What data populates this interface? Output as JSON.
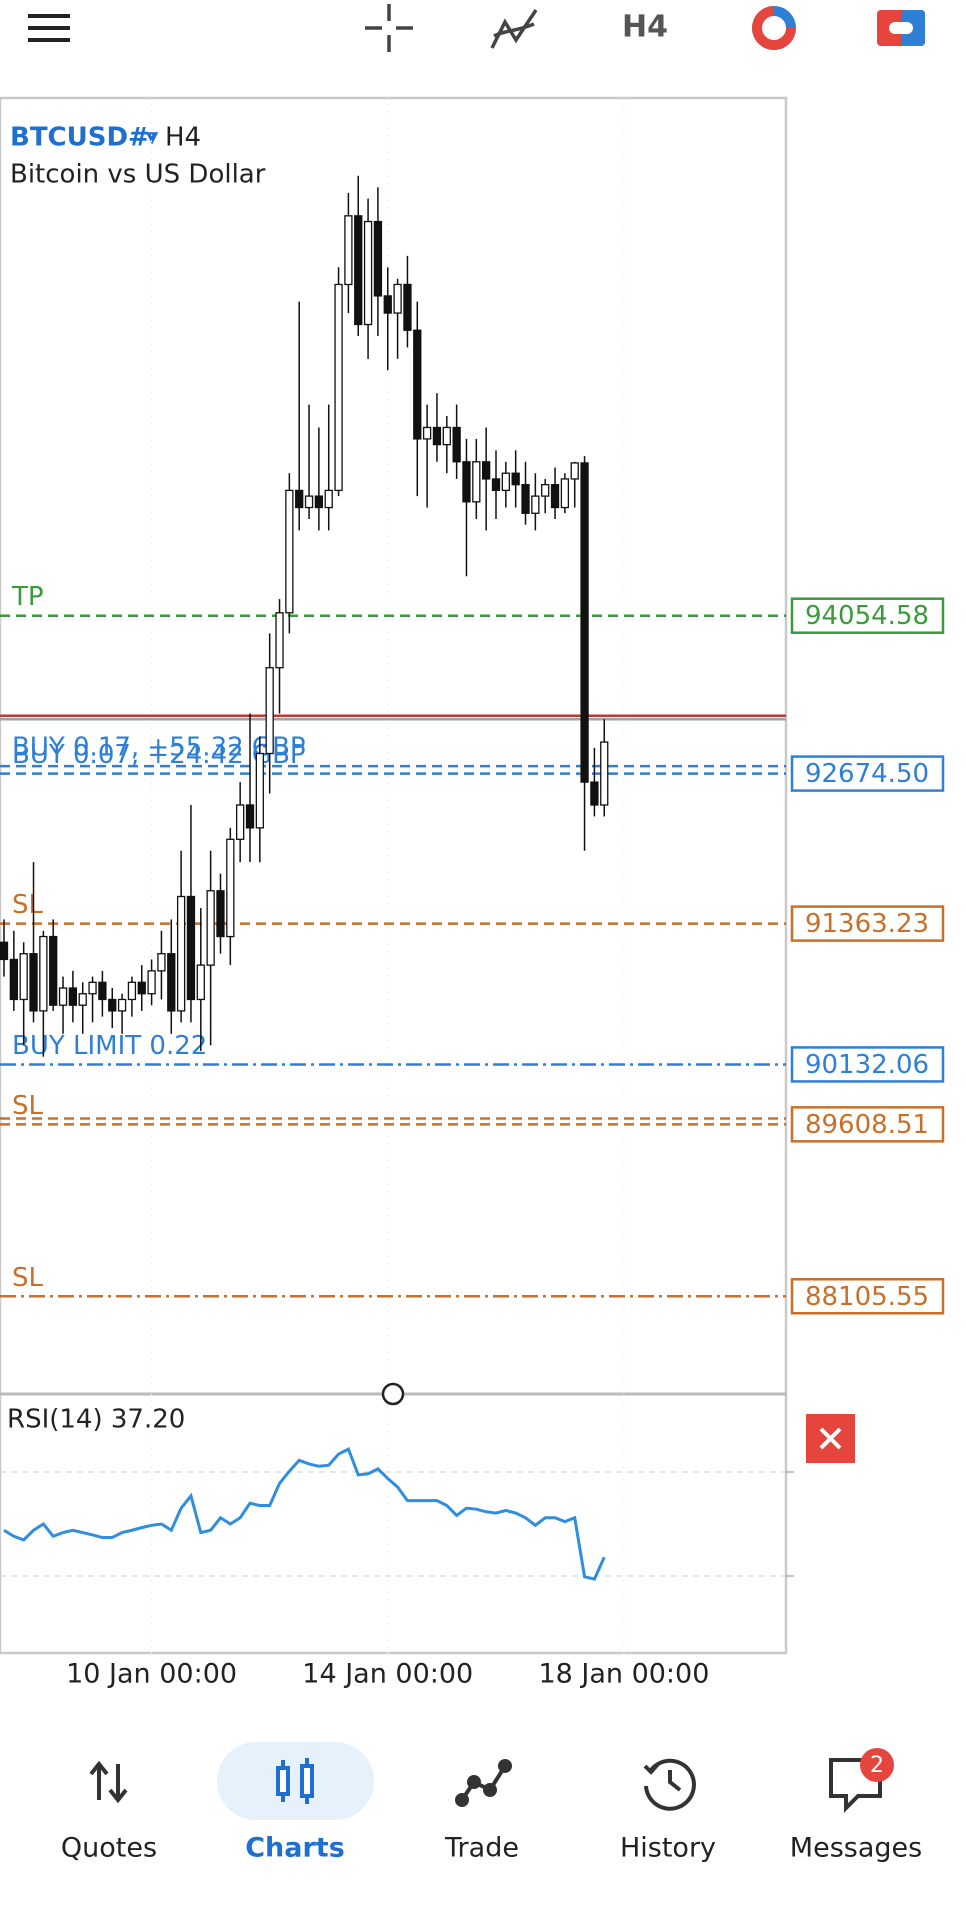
{
  "top_bar": {
    "timeframe": "H4"
  },
  "chart": {
    "symbol": "BTCUSD#",
    "timeframe": "H4",
    "description": "Bitcoin vs US Dollar",
    "ylim": [
      87260,
      98580
    ],
    "candles": [
      [
        91200,
        91400,
        90900,
        91050
      ],
      [
        91050,
        91300,
        90600,
        90700
      ],
      [
        90700,
        91200,
        90300,
        91100
      ],
      [
        91100,
        91900,
        90500,
        90600
      ],
      [
        90600,
        91300,
        90200,
        91250
      ],
      [
        91250,
        91400,
        90600,
        90650
      ],
      [
        90650,
        90900,
        90400,
        90800
      ],
      [
        90800,
        90950,
        90500,
        90650
      ],
      [
        90650,
        90850,
        90400,
        90750
      ],
      [
        90750,
        90900,
        90500,
        90850
      ],
      [
        90850,
        90950,
        90550,
        90700
      ],
      [
        90700,
        90800,
        90450,
        90600
      ],
      [
        90600,
        90750,
        90400,
        90700
      ],
      [
        90700,
        90900,
        90550,
        90850
      ],
      [
        90850,
        91000,
        90600,
        90750
      ],
      [
        90750,
        91050,
        90650,
        90950
      ],
      [
        90950,
        91300,
        90700,
        91100
      ],
      [
        91100,
        91400,
        90400,
        90600
      ],
      [
        90600,
        92000,
        90500,
        91600
      ],
      [
        91600,
        92400,
        90500,
        90700
      ],
      [
        90700,
        91500,
        90250,
        91000
      ],
      [
        91000,
        92000,
        90300,
        91650
      ],
      [
        91650,
        91800,
        91100,
        91250
      ],
      [
        91250,
        92200,
        91000,
        92100
      ],
      [
        92100,
        92600,
        91900,
        92400
      ],
      [
        92400,
        93200,
        91900,
        92200
      ],
      [
        92200,
        93000,
        91900,
        92850
      ],
      [
        92850,
        93900,
        92500,
        93600
      ],
      [
        93600,
        94200,
        93200,
        94080
      ],
      [
        94080,
        95300,
        93900,
        95150
      ],
      [
        95150,
        96800,
        94800,
        95000
      ],
      [
        95000,
        95900,
        94900,
        95100
      ],
      [
        95100,
        95700,
        94800,
        95000
      ],
      [
        95000,
        95900,
        94800,
        95150
      ],
      [
        95150,
        97100,
        95100,
        96950
      ],
      [
        96950,
        97750,
        96700,
        97550
      ],
      [
        97550,
        97900,
        96500,
        96600
      ],
      [
        96600,
        97700,
        96300,
        97500
      ],
      [
        97500,
        97800,
        96500,
        96850
      ],
      [
        96850,
        97100,
        96200,
        96700
      ],
      [
        96700,
        97000,
        96300,
        96950
      ],
      [
        96950,
        97200,
        96400,
        96550
      ],
      [
        96550,
        96800,
        95100,
        95600
      ],
      [
        95600,
        95900,
        95000,
        95700
      ],
      [
        95700,
        96000,
        95400,
        95550
      ],
      [
        95550,
        95800,
        95300,
        95700
      ],
      [
        95700,
        95900,
        95250,
        95400
      ],
      [
        95400,
        95600,
        94400,
        95050
      ],
      [
        95050,
        95600,
        94900,
        95400
      ],
      [
        95400,
        95700,
        94800,
        95250
      ],
      [
        95250,
        95500,
        94900,
        95150
      ],
      [
        95150,
        95400,
        95000,
        95300
      ],
      [
        95300,
        95500,
        95000,
        95200
      ],
      [
        95200,
        95400,
        94850,
        94950
      ],
      [
        94950,
        95300,
        94800,
        95100
      ],
      [
        95100,
        95250,
        94950,
        95200
      ],
      [
        95200,
        95350,
        94900,
        95000
      ],
      [
        95000,
        95300,
        94950,
        95250
      ],
      [
        95250,
        95400,
        95000,
        95390
      ],
      [
        95390,
        95450,
        92000,
        92600
      ],
      [
        92600,
        92900,
        92300,
        92400
      ],
      [
        92400,
        93150,
        92300,
        92950
      ]
    ],
    "x_labels": [
      {
        "index": 15,
        "label": "10 Jan 00:00"
      },
      {
        "index": 39,
        "label": "14 Jan 00:00"
      },
      {
        "index": 63,
        "label": "18 Jan 00:00"
      }
    ],
    "price_lines": [
      {
        "label": "TP",
        "price": 94054.58,
        "price_label": "94054.58",
        "color": "#3a9b3a",
        "style": "dashed"
      },
      {
        "price": 93180,
        "color": "#c0392b",
        "style": "solid"
      },
      {
        "price": 93150,
        "color": "#9aa4ae",
        "style": "solid"
      },
      {
        "label": "BUY 0.17, +55.32 GBP",
        "price": 92740,
        "color": "#2f7fd6",
        "style": "dashed"
      },
      {
        "label": "BUY 0.07, +24.42 GBP",
        "price": 92674.5,
        "price_label": "92674.50",
        "color": "#2f7fd6",
        "style": "dashed"
      },
      {
        "label": "SL",
        "price": 91363.23,
        "price_label": "91363.23",
        "color": "#c8702a",
        "style": "dashed"
      },
      {
        "label": "BUY LIMIT 0.22",
        "price": 90132.06,
        "price_label": "90132.06",
        "color": "#2f7fd6",
        "style": "dashdot"
      },
      {
        "price": 89660,
        "color": "#c8702a",
        "style": "dashed"
      },
      {
        "label": "SL",
        "price": 89608.51,
        "price_label": "89608.51",
        "color": "#c8702a",
        "style": "dashed"
      },
      {
        "label": "SL",
        "price": 88105.55,
        "price_label": "88105.55",
        "color": "#c8702a",
        "style": "dashdot"
      }
    ]
  },
  "rsi": {
    "label": "RSI(14) 37.20",
    "ylim": [
      0,
      100
    ],
    "levels": [
      30,
      70
    ],
    "values": [
      47.6,
      45.3,
      43.9,
      47.6,
      50.0,
      45.3,
      46.7,
      47.6,
      46.7,
      45.8,
      44.8,
      44.8,
      46.7,
      47.6,
      48.6,
      49.5,
      50.0,
      47.6,
      56.1,
      60.8,
      46.7,
      47.6,
      52.4,
      50.0,
      52.4,
      58.0,
      57.1,
      57.1,
      65.6,
      70.3,
      74.5,
      73.1,
      72.2,
      72.6,
      76.9,
      78.8,
      68.9,
      69.3,
      71.2,
      67.5,
      64.2,
      59.0,
      59.0,
      59.0,
      59.0,
      57.1,
      53.3,
      56.1,
      55.7,
      54.7,
      54.2,
      55.2,
      54.2,
      52.4,
      49.5,
      52.4,
      52.4,
      50.9,
      52.4,
      29.7,
      28.8,
      37.2
    ]
  },
  "nav": {
    "items": [
      "Quotes",
      "Charts",
      "Trade",
      "History",
      "Messages"
    ],
    "badge": 2
  }
}
